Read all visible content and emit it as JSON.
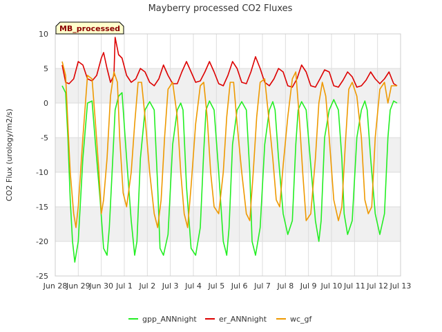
{
  "chart_data": {
    "type": "line",
    "title": "Mayberry processed CO2 Fluxes",
    "xlabel": "",
    "ylabel": "CO2 Flux (urology/m2/s)",
    "badge": "MB_processed",
    "ylim": [
      -25,
      10
    ],
    "xlim": [
      0,
      15
    ],
    "y_ticks": [
      10,
      5,
      0,
      -5,
      -10,
      -15,
      -20,
      -25
    ],
    "x_ticks": [
      {
        "pos": 0,
        "label": "Jun 28"
      },
      {
        "pos": 1,
        "label": "Jun 29"
      },
      {
        "pos": 2,
        "label": "Jun 30"
      },
      {
        "pos": 3,
        "label": "Jul 1"
      },
      {
        "pos": 4,
        "label": "Jul 2"
      },
      {
        "pos": 5,
        "label": "Jul 3"
      },
      {
        "pos": 6,
        "label": "Jul 4"
      },
      {
        "pos": 7,
        "label": "Jul 5"
      },
      {
        "pos": 8,
        "label": "Jul 6"
      },
      {
        "pos": 9,
        "label": "Jul 7"
      },
      {
        "pos": 10,
        "label": "Jul 8"
      },
      {
        "pos": 11,
        "label": "Jul 9"
      },
      {
        "pos": 12,
        "label": "Jul 10"
      },
      {
        "pos": 13,
        "label": "Jul 11"
      },
      {
        "pos": 14,
        "label": "Jul 12"
      },
      {
        "pos": 15,
        "label": "Jul 13"
      }
    ],
    "grid": true,
    "legend_position": "bottom",
    "series": [
      {
        "name": "gpp_ANNnight",
        "color": "#22ee22",
        "x": [
          0.3,
          0.45,
          0.55,
          0.65,
          0.75,
          0.85,
          1.0,
          1.2,
          1.4,
          1.6,
          1.75,
          1.95,
          2.1,
          2.25,
          2.35,
          2.5,
          2.6,
          2.75,
          2.9,
          3.1,
          3.3,
          3.45,
          3.55,
          3.7,
          3.9,
          4.1,
          4.3,
          4.45,
          4.55,
          4.7,
          4.9,
          5.1,
          5.3,
          5.45,
          5.55,
          5.7,
          5.9,
          6.1,
          6.3,
          6.45,
          6.55,
          6.7,
          6.9,
          7.1,
          7.3,
          7.45,
          7.55,
          7.7,
          7.9,
          8.1,
          8.3,
          8.45,
          8.55,
          8.7,
          8.9,
          9.1,
          9.3,
          9.45,
          9.55,
          9.7,
          9.9,
          10.1,
          10.3,
          10.45,
          10.55,
          10.7,
          10.9,
          11.1,
          11.3,
          11.45,
          11.55,
          11.7,
          11.9,
          12.1,
          12.3,
          12.45,
          12.55,
          12.7,
          12.9,
          13.1,
          13.3,
          13.45,
          13.55,
          13.7,
          13.9,
          14.1,
          14.3,
          14.45,
          14.55,
          14.7,
          14.85
        ],
        "values": [
          2.5,
          1.5,
          -5,
          -14,
          -20,
          -23,
          -20,
          -8,
          0,
          0.3,
          -6,
          -14,
          -21,
          -22,
          -18,
          -8,
          -1,
          1,
          1.5,
          -8,
          -17,
          -22,
          -20,
          -8,
          -1,
          0.2,
          -1,
          -12,
          -21,
          -22,
          -19,
          -6,
          -1,
          0,
          -1,
          -12,
          -21,
          -22,
          -18,
          -7,
          -1,
          0.3,
          -1,
          -10,
          -20,
          -22,
          -18,
          -6,
          -1,
          0.2,
          -1,
          -10,
          -20,
          -22,
          -18,
          -6,
          -1,
          0.2,
          -1,
          -8,
          -16,
          -19,
          -17,
          -6,
          -1,
          0.2,
          -1,
          -9,
          -17,
          -20,
          -17,
          -5,
          -1,
          0.5,
          -1,
          -8,
          -16,
          -19,
          -17,
          -5,
          -1,
          0.3,
          -1,
          -8,
          -16,
          -19,
          -16,
          -5,
          -1,
          0.3,
          0
        ]
      },
      {
        "name": "er_ANNnight",
        "color": "#dd0000",
        "x": [
          0.3,
          0.45,
          0.6,
          0.8,
          1.0,
          1.2,
          1.4,
          1.6,
          1.8,
          2.0,
          2.1,
          2.25,
          2.4,
          2.55,
          2.6,
          2.75,
          2.9,
          3.1,
          3.3,
          3.5,
          3.7,
          3.9,
          4.1,
          4.3,
          4.5,
          4.7,
          4.9,
          5.1,
          5.3,
          5.5,
          5.7,
          5.9,
          6.1,
          6.3,
          6.5,
          6.7,
          6.9,
          7.1,
          7.3,
          7.5,
          7.7,
          7.9,
          8.1,
          8.3,
          8.5,
          8.7,
          8.9,
          9.1,
          9.3,
          9.5,
          9.7,
          9.9,
          10.1,
          10.3,
          10.5,
          10.7,
          10.9,
          11.1,
          11.3,
          11.5,
          11.7,
          11.9,
          12.1,
          12.3,
          12.5,
          12.7,
          12.9,
          13.1,
          13.3,
          13.5,
          13.7,
          13.9,
          14.1,
          14.3,
          14.5,
          14.7,
          14.85
        ],
        "values": [
          5.5,
          3,
          2.8,
          3.5,
          6,
          5.5,
          3.5,
          3.2,
          4,
          6.5,
          7.3,
          5,
          3,
          4,
          9.5,
          7,
          6.5,
          4,
          3,
          3.5,
          5,
          4.5,
          3,
          2.5,
          3.5,
          5.5,
          4,
          2.8,
          2.8,
          4.5,
          6,
          4.5,
          3,
          3.2,
          4.5,
          6,
          4.5,
          2.8,
          2.5,
          4,
          6,
          5,
          3,
          2.8,
          4.5,
          6.7,
          5,
          3,
          2.5,
          3.5,
          5,
          4.5,
          2.5,
          2.3,
          3.5,
          5.5,
          4.5,
          2.5,
          2.3,
          3.5,
          4.8,
          4.5,
          2.5,
          2.3,
          3.3,
          4.5,
          3.8,
          2.3,
          2.5,
          3.3,
          4.5,
          3.5,
          2.8,
          3.5,
          4.5,
          2.8,
          2.5
        ]
      },
      {
        "name": "wc_gf",
        "color": "#ee9900",
        "x": [
          0.3,
          0.45,
          0.55,
          0.65,
          0.8,
          0.9,
          1.0,
          1.2,
          1.4,
          1.6,
          1.75,
          1.9,
          2.0,
          2.1,
          2.25,
          2.4,
          2.55,
          2.7,
          2.8,
          2.95,
          3.1,
          3.3,
          3.45,
          3.6,
          3.75,
          3.9,
          4.1,
          4.3,
          4.45,
          4.6,
          4.75,
          4.9,
          5.1,
          5.3,
          5.45,
          5.6,
          5.75,
          5.9,
          6.1,
          6.3,
          6.45,
          6.6,
          6.75,
          6.9,
          7.1,
          7.3,
          7.45,
          7.6,
          7.75,
          7.9,
          8.1,
          8.3,
          8.45,
          8.6,
          8.75,
          8.9,
          9.1,
          9.3,
          9.45,
          9.6,
          9.75,
          9.9,
          10.1,
          10.3,
          10.45,
          10.6,
          10.75,
          10.9,
          11.1,
          11.3,
          11.45,
          11.6,
          11.75,
          11.9,
          12.1,
          12.3,
          12.45,
          12.6,
          12.75,
          12.9,
          13.1,
          13.3,
          13.45,
          13.6,
          13.75,
          13.9,
          14.1,
          14.3,
          14.45,
          14.6,
          14.75,
          14.85
        ],
        "values": [
          6,
          4,
          -3,
          -10,
          -16,
          -18,
          -15,
          -5,
          4,
          3.5,
          -3,
          -10,
          -16,
          -14,
          -8,
          1,
          4.5,
          3,
          -5,
          -13,
          -15,
          -10,
          -3,
          3,
          3,
          -2,
          -10,
          -16,
          -18,
          -14,
          -5,
          2,
          3,
          -2,
          -10,
          -16,
          -18,
          -12,
          -3,
          2.5,
          3,
          -2,
          -10,
          -15,
          -16,
          -10,
          -2,
          3,
          3,
          -3,
          -10,
          -16,
          -17,
          -10,
          -2,
          3,
          3.5,
          -3,
          -8,
          -14,
          -15,
          -9,
          -2,
          3.5,
          4.5,
          -2,
          -10,
          -17,
          -16,
          -8,
          0,
          3,
          1,
          -5,
          -14,
          -17,
          -15,
          -6,
          2,
          3,
          1,
          -5,
          -14,
          -16,
          -15,
          -5,
          2,
          3,
          0,
          2.5,
          2.5,
          2.5
        ]
      }
    ]
  }
}
